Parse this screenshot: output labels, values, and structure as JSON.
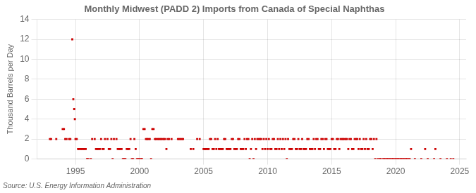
{
  "chart_data": {
    "type": "scatter",
    "title": "Monthly Midwest (PADD 2) Imports from Canada of Special Naphthas",
    "ylabel": "Thousand Barrels per Day",
    "source": "Source: U.S. Energy Information Administration",
    "xlim": [
      1992.0,
      2025.5
    ],
    "ylim": [
      0,
      14
    ],
    "xticks": [
      1995,
      2000,
      2005,
      2010,
      2015,
      2020,
      2025
    ],
    "yticks": [
      0,
      2,
      4,
      6,
      8,
      10,
      12,
      14
    ],
    "color": "#cc0000",
    "marker": "square",
    "grid": true,
    "x": [
      1993.0,
      1993.1,
      1993.5,
      1994.0,
      1994.1,
      1994.2,
      1994.3,
      1994.5,
      1994.6,
      1994.75,
      1994.83,
      1994.9,
      1994.95,
      1995.0,
      1995.1,
      1995.2,
      1995.3,
      1995.4,
      1995.5,
      1995.6,
      1995.7,
      1995.8,
      1995.9,
      1996.0,
      1996.2,
      1996.3,
      1996.5,
      1996.6,
      1996.7,
      1996.8,
      1996.9,
      1997.0,
      1997.1,
      1997.2,
      1997.3,
      1997.5,
      1997.6,
      1997.7,
      1997.8,
      1997.9,
      1998.0,
      1998.2,
      1998.3,
      1998.4,
      1998.5,
      1998.6,
      1998.7,
      1998.8,
      1998.9,
      1999.0,
      1999.1,
      1999.2,
      1999.3,
      1999.4,
      1999.5,
      1999.6,
      1999.7,
      1999.8,
      1999.9,
      2000.0,
      2000.1,
      2000.2,
      2000.3,
      2000.4,
      2000.5,
      2000.6,
      2000.7,
      2000.8,
      2000.9,
      2001.0,
      2001.1,
      2001.2,
      2001.3,
      2001.4,
      2001.5,
      2001.6,
      2001.7,
      2001.8,
      2001.9,
      2002.0,
      2002.1,
      2002.2,
      2002.3,
      2002.5,
      2003.0,
      2003.1,
      2003.2,
      2003.3,
      2003.4,
      2004.0,
      2004.2,
      2004.5,
      2004.7,
      2005.0,
      2005.1,
      2005.2,
      2005.3,
      2005.4,
      2005.5,
      2005.6,
      2005.7,
      2005.8,
      2005.9,
      2006.0,
      2006.1,
      2006.2,
      2006.3,
      2006.4,
      2006.5,
      2006.6,
      2006.7,
      2006.8,
      2006.9,
      2007.0,
      2007.1,
      2007.2,
      2007.3,
      2007.4,
      2007.5,
      2007.6,
      2007.7,
      2007.8,
      2007.9,
      2008.0,
      2008.1,
      2008.2,
      2008.3,
      2008.4,
      2008.5,
      2008.6,
      2008.7,
      2008.8,
      2008.9,
      2009.0,
      2009.1,
      2009.2,
      2009.3,
      2009.4,
      2009.5,
      2009.6,
      2009.7,
      2009.8,
      2009.9,
      2010.0,
      2010.1,
      2010.2,
      2010.3,
      2010.4,
      2010.5,
      2010.6,
      2010.7,
      2010.8,
      2010.9,
      2011.0,
      2011.1,
      2011.2,
      2011.3,
      2011.4,
      2011.5,
      2011.6,
      2011.7,
      2011.8,
      2011.9,
      2012.0,
      2012.1,
      2012.2,
      2012.3,
      2012.4,
      2012.5,
      2012.6,
      2012.7,
      2012.8,
      2012.9,
      2013.0,
      2013.1,
      2013.2,
      2013.3,
      2013.4,
      2013.5,
      2013.6,
      2013.7,
      2013.8,
      2013.9,
      2014.0,
      2014.1,
      2014.2,
      2014.3,
      2014.4,
      2014.5,
      2014.6,
      2014.7,
      2014.8,
      2014.9,
      2015.0,
      2015.1,
      2015.2,
      2015.3,
      2015.4,
      2015.5,
      2015.6,
      2015.7,
      2015.8,
      2015.9,
      2016.0,
      2016.1,
      2016.2,
      2016.3,
      2016.4,
      2016.5,
      2016.6,
      2016.7,
      2016.8,
      2016.9,
      2017.0,
      2017.1,
      2017.2,
      2017.3,
      2017.4,
      2017.5,
      2017.6,
      2017.7,
      2017.8,
      2017.9,
      2018.0,
      2018.1,
      2018.2,
      2018.3,
      2018.4,
      2018.5,
      2018.6,
      2018.75,
      2018.83,
      2019.0,
      2019.1,
      2019.2,
      2019.3,
      2019.4,
      2019.5,
      2019.6,
      2019.7,
      2019.8,
      2019.9,
      2020.0,
      2020.1,
      2020.2,
      2020.3,
      2020.4,
      2020.5,
      2020.6,
      2020.7,
      2020.8,
      2020.9,
      2021.0,
      2021.1,
      2021.2,
      2021.5,
      2022.0,
      2022.3,
      2022.5,
      2023.0,
      2023.1,
      2023.5,
      2024.0,
      2024.3,
      2024.5
    ],
    "values": [
      2,
      2,
      2,
      3,
      3,
      2,
      2,
      2,
      2,
      12,
      6,
      5,
      4,
      2,
      2,
      1,
      1,
      1,
      1,
      1,
      1,
      1,
      0,
      0,
      0,
      2,
      2,
      1,
      1,
      1,
      1,
      2,
      1,
      1,
      2,
      2,
      1,
      1,
      2,
      0,
      2,
      2,
      1,
      1,
      1,
      1,
      0,
      0,
      0,
      1,
      1,
      1,
      2,
      0,
      0,
      2,
      1,
      0,
      0,
      0,
      0,
      0,
      3,
      3,
      2,
      2,
      2,
      2,
      0,
      3,
      3,
      2,
      2,
      2,
      2,
      2,
      2,
      2,
      2,
      2,
      1,
      2,
      2,
      2,
      2,
      2,
      2,
      2,
      2,
      1,
      1,
      2,
      2,
      1,
      1,
      1,
      1,
      1,
      2,
      2,
      1,
      1,
      2,
      1,
      2,
      1,
      1,
      1,
      1,
      2,
      2,
      1,
      1,
      1,
      1,
      2,
      2,
      1,
      1,
      1,
      2,
      2,
      1,
      1,
      1,
      2,
      1,
      2,
      2,
      0,
      1,
      2,
      0,
      2,
      1,
      2,
      2,
      2,
      2,
      1,
      2,
      1,
      2,
      1,
      2,
      1,
      1,
      2,
      2,
      1,
      1,
      2,
      1,
      2,
      1,
      2,
      1,
      2,
      0,
      2,
      1,
      1,
      1,
      2,
      2,
      1,
      1,
      2,
      1,
      1,
      2,
      1,
      1,
      1,
      2,
      2,
      1,
      1,
      1,
      2,
      1,
      2,
      2,
      1,
      1,
      2,
      2,
      1,
      2,
      2,
      1,
      1,
      1,
      2,
      2,
      1,
      1,
      2,
      2,
      1,
      2,
      2,
      2,
      2,
      2,
      2,
      1,
      2,
      2,
      1,
      1,
      2,
      2,
      2,
      1,
      2,
      1,
      1,
      2,
      1,
      2,
      1,
      1,
      2,
      2,
      1,
      2,
      0,
      2,
      0,
      0,
      0,
      0,
      0,
      0,
      0,
      0,
      0,
      0,
      0,
      0,
      0,
      0,
      0,
      0,
      0,
      0,
      0,
      0,
      0,
      0,
      0,
      0,
      0,
      1,
      0,
      0,
      1,
      0,
      0,
      1,
      0,
      0,
      0,
      0
    ]
  }
}
